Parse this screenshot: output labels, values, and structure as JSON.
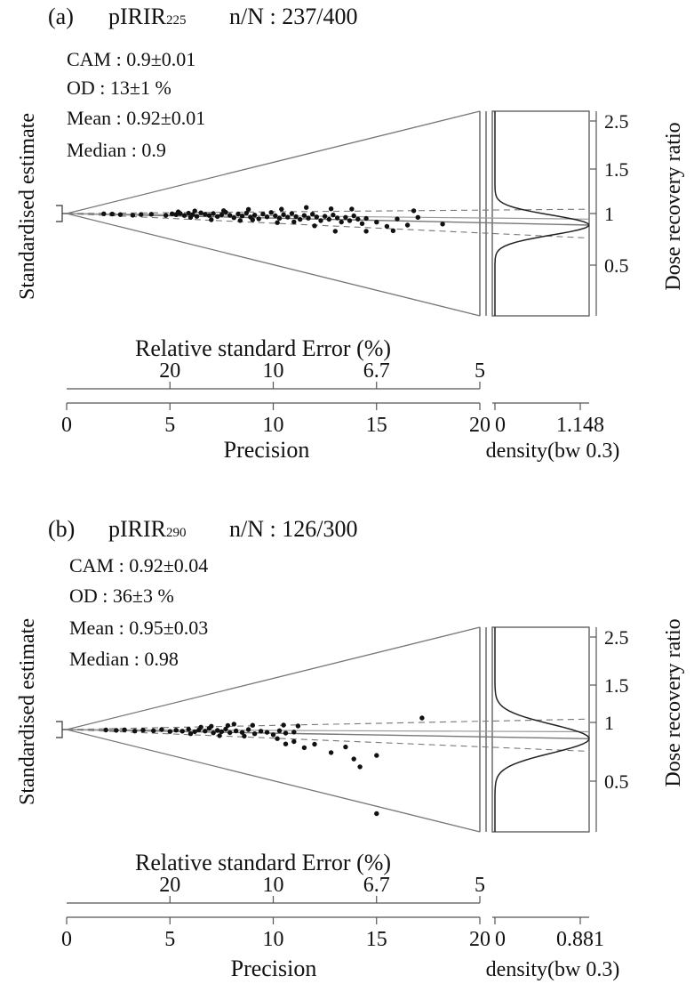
{
  "panels": [
    {
      "label": "(a)",
      "sample": "pIRIR",
      "sample_sub": "225",
      "count": "n/N : 237/400",
      "stats": [
        "CAM : 0.9±0.01",
        "OD : 13±1 %",
        "Mean : 0.92±0.01",
        "Median : 0.9"
      ]
    },
    {
      "label": "(b)",
      "sample": "pIRIR",
      "sample_sub": "290",
      "count": "n/N : 126/300",
      "stats": [
        "CAM : 0.92±0.04",
        "OD : 36±3 %",
        "Mean : 0.95±0.03",
        "Median : 0.98"
      ]
    }
  ],
  "chart_data": [
    {
      "type": "scatter",
      "subtype": "abanico",
      "title": "(a) pIRIR225 n/N : 237/400",
      "ylabel": "Standardised estimate",
      "ylabel_right": "Dose recovery ratio",
      "xlabel": "Precision",
      "xlabel_top": "Relative standard Error (%)",
      "density_label": "density(bw 0.3)",
      "x_ticks": [
        "0",
        "5",
        "10",
        "15",
        "20"
      ],
      "x_tick_values": [
        0,
        5,
        10,
        15,
        20
      ],
      "rse_ticks": [
        "20",
        "10",
        "6.7",
        "5"
      ],
      "rse_tick_values": [
        5,
        10,
        15,
        20
      ],
      "density_ticks": [
        "0",
        "1.148"
      ],
      "density_max": 1.148,
      "ratio_ticks": [
        "2.5",
        "1.5",
        "1",
        "0.5"
      ],
      "ratio_tick_values": [
        2.5,
        1.5,
        1,
        0.5
      ],
      "central_value": 0.9,
      "grey_line": 0.95,
      "od_band": [
        0.8,
        1.04
      ],
      "density_sigma": 0.09,
      "xlim": [
        0,
        20
      ],
      "points": [
        [
          1.8,
          0.97
        ],
        [
          2.2,
          0.96
        ],
        [
          2.6,
          0.93
        ],
        [
          3.2,
          0.91
        ],
        [
          3.6,
          0.95
        ],
        [
          4.1,
          0.97
        ],
        [
          4.8,
          0.93
        ],
        [
          5.1,
          0.99
        ],
        [
          5.3,
          0.96
        ],
        [
          5.5,
          1.0
        ],
        [
          5.7,
          0.94
        ],
        [
          5.9,
          1.01
        ],
        [
          6.1,
          0.97
        ],
        [
          6.3,
          0.92
        ],
        [
          6.5,
          1.02
        ],
        [
          6.7,
          0.98
        ],
        [
          6.9,
          0.95
        ],
        [
          7.1,
          1.0
        ],
        [
          7.3,
          0.93
        ],
        [
          7.5,
          0.97
        ],
        [
          7.7,
          1.03
        ],
        [
          7.9,
          0.96
        ],
        [
          8.1,
          0.91
        ],
        [
          8.3,
          0.99
        ],
        [
          8.5,
          0.95
        ],
        [
          8.7,
          1.01
        ],
        [
          8.9,
          0.93
        ],
        [
          9.1,
          0.97
        ],
        [
          9.3,
          0.9
        ],
        [
          9.5,
          0.99
        ],
        [
          9.7,
          0.94
        ],
        [
          9.9,
          1.02
        ],
        [
          10.1,
          0.96
        ],
        [
          10.3,
          0.92
        ],
        [
          10.5,
          0.98
        ],
        [
          10.7,
          0.94
        ],
        [
          10.9,
          1.0
        ],
        [
          11.1,
          0.95
        ],
        [
          11.3,
          0.91
        ],
        [
          11.5,
          0.97
        ],
        [
          11.7,
          0.93
        ],
        [
          11.9,
          0.99
        ],
        [
          12.1,
          0.95
        ],
        [
          12.3,
          0.9
        ],
        [
          12.5,
          0.96
        ],
        [
          12.7,
          0.92
        ],
        [
          12.9,
          0.98
        ],
        [
          13.1,
          0.94
        ],
        [
          13.3,
          0.89
        ],
        [
          13.5,
          0.95
        ],
        [
          13.7,
          0.91
        ],
        [
          13.9,
          0.97
        ],
        [
          14.1,
          0.93
        ],
        [
          14.3,
          0.88
        ],
        [
          14.5,
          0.94
        ],
        [
          15.0,
          0.9
        ],
        [
          15.5,
          0.86
        ],
        [
          16.0,
          0.94
        ],
        [
          16.5,
          0.88
        ],
        [
          17.0,
          0.96
        ],
        [
          18.2,
          0.9
        ],
        [
          5.4,
          1.06
        ],
        [
          6.2,
          1.08
        ],
        [
          7.6,
          1.07
        ],
        [
          8.8,
          1.09
        ],
        [
          10.4,
          1.08
        ],
        [
          11.6,
          1.1
        ],
        [
          12.8,
          1.07
        ],
        [
          13.8,
          1.06
        ],
        [
          16.8,
          1.03
        ],
        [
          7.0,
          0.85
        ],
        [
          8.4,
          0.86
        ],
        [
          10.2,
          0.85
        ],
        [
          12.0,
          0.83
        ],
        [
          13.0,
          0.78
        ],
        [
          14.5,
          0.8
        ],
        [
          15.8,
          0.82
        ],
        [
          9.0,
          0.88
        ],
        [
          11.0,
          0.87
        ],
        [
          6.0,
          0.89
        ]
      ]
    },
    {
      "type": "scatter",
      "subtype": "abanico",
      "title": "(b) pIRIR290 n/N : 126/300",
      "ylabel": "Standardised estimate",
      "ylabel_right": "Dose recovery ratio",
      "xlabel": "Precision",
      "xlabel_top": "Relative standard Error (%)",
      "density_label": "density(bw 0.3)",
      "x_ticks": [
        "0",
        "5",
        "10",
        "15",
        "20"
      ],
      "x_tick_values": [
        0,
        5,
        10,
        15,
        20
      ],
      "rse_ticks": [
        "20",
        "10",
        "6.7",
        "5"
      ],
      "rse_tick_values": [
        5,
        10,
        15,
        20
      ],
      "density_ticks": [
        "0",
        "0.881"
      ],
      "density_max": 0.881,
      "ratio_ticks": [
        "2.5",
        "1.5",
        "1",
        "0.5"
      ],
      "ratio_tick_values": [
        2.5,
        1.5,
        1,
        0.5
      ],
      "central_value": 0.92,
      "grey_line": 0.98,
      "od_band": [
        0.82,
        1.1
      ],
      "density_sigma": 0.13,
      "xlim": [
        0,
        20
      ],
      "points": [
        [
          1.9,
          0.96
        ],
        [
          2.4,
          0.94
        ],
        [
          2.8,
          0.98
        ],
        [
          3.3,
          0.92
        ],
        [
          3.7,
          0.97
        ],
        [
          4.2,
          0.95
        ],
        [
          4.6,
          1.0
        ],
        [
          5.0,
          0.93
        ],
        [
          5.3,
          0.98
        ],
        [
          5.6,
          0.95
        ],
        [
          5.9,
          1.01
        ],
        [
          6.2,
          0.94
        ],
        [
          6.4,
          0.99
        ],
        [
          6.7,
          0.96
        ],
        [
          6.9,
          1.03
        ],
        [
          7.1,
          0.92
        ],
        [
          7.3,
          0.98
        ],
        [
          7.5,
          0.95
        ],
        [
          7.7,
          1.01
        ],
        [
          7.9,
          0.93
        ],
        [
          8.2,
          0.97
        ],
        [
          8.5,
          0.94
        ],
        [
          8.8,
          1.0
        ],
        [
          9.1,
          0.92
        ],
        [
          9.4,
          0.97
        ],
        [
          9.7,
          0.95
        ],
        [
          10.0,
          0.91
        ],
        [
          10.3,
          0.98
        ],
        [
          10.6,
          0.94
        ],
        [
          11.0,
          0.96
        ],
        [
          6.5,
          1.07
        ],
        [
          7.0,
          1.09
        ],
        [
          7.8,
          1.1
        ],
        [
          8.1,
          1.13
        ],
        [
          9.0,
          1.09
        ],
        [
          10.5,
          1.08
        ],
        [
          11.2,
          1.06
        ],
        [
          6.0,
          0.88
        ],
        [
          7.4,
          0.86
        ],
        [
          8.6,
          0.87
        ],
        [
          10.2,
          0.85
        ],
        [
          10.6,
          0.78
        ],
        [
          11.0,
          0.82
        ],
        [
          11.5,
          0.75
        ],
        [
          12.0,
          0.8
        ],
        [
          12.8,
          0.72
        ],
        [
          13.5,
          0.79
        ],
        [
          13.9,
          0.68
        ],
        [
          14.2,
          0.62
        ],
        [
          15.0,
          0.73
        ],
        [
          15.0,
          0.36
        ],
        [
          17.2,
          1.13
        ]
      ]
    }
  ]
}
